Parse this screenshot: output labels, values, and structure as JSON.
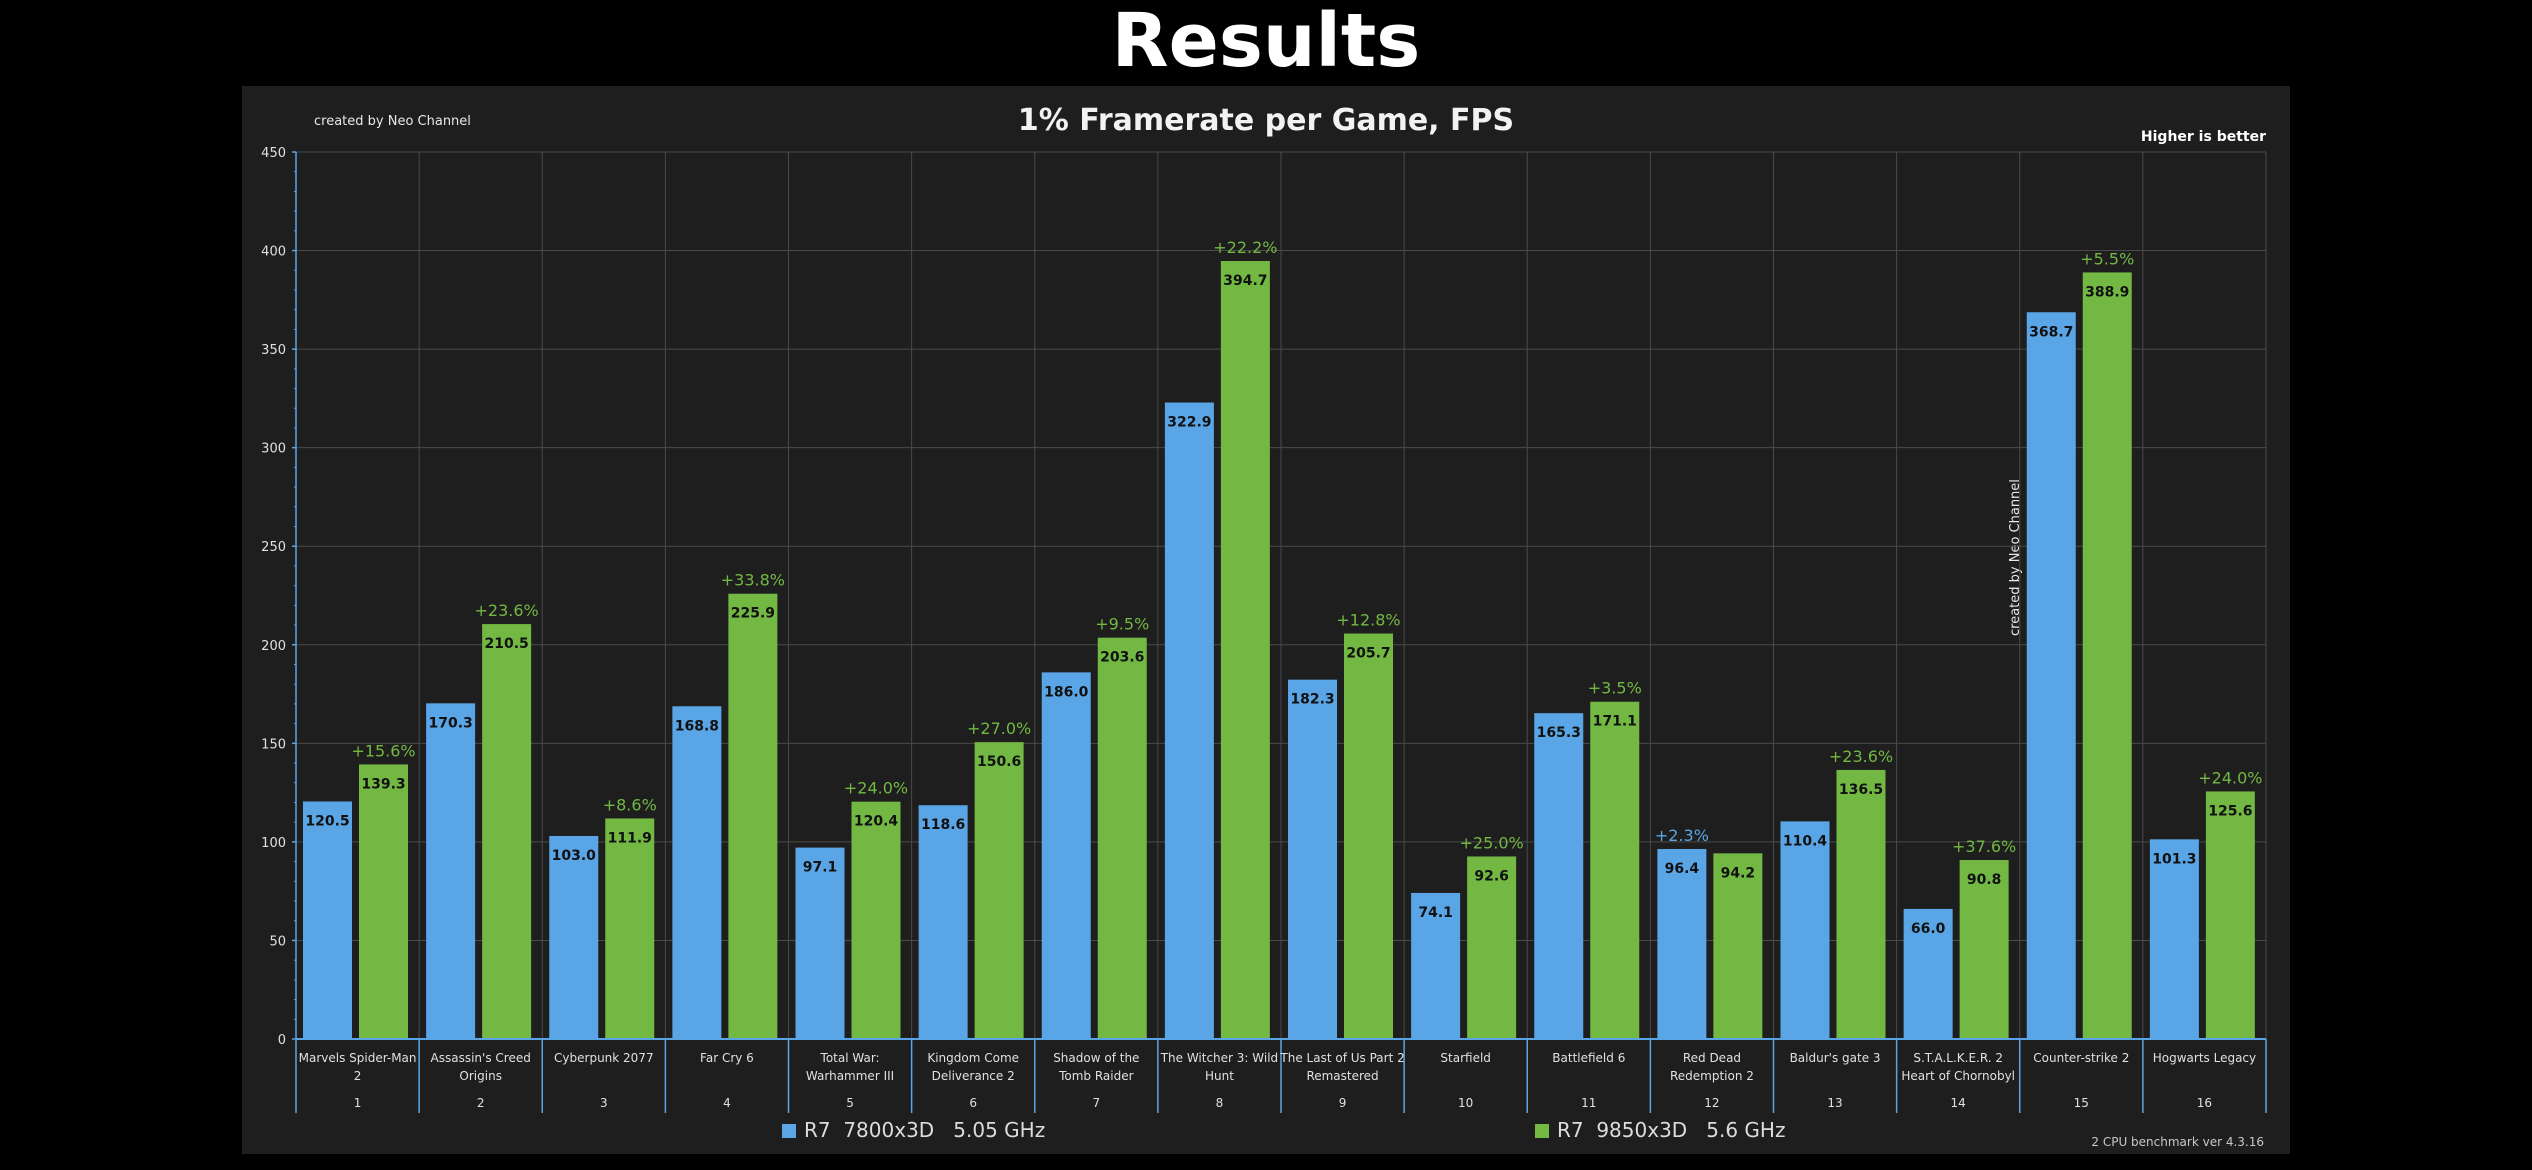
{
  "page": {
    "title": "Results"
  },
  "chart_data": {
    "type": "bar",
    "title": "1% Framerate per Game, FPS",
    "credit": "created by Neo Channel",
    "credit_vertical": "created by Neo Channel",
    "note": "Higher is better",
    "footer": "2 CPU benchmark    ver 4.3.16",
    "ylim": [
      0,
      450
    ],
    "yticks": [
      0,
      50,
      100,
      150,
      200,
      250,
      300,
      350,
      400,
      450
    ],
    "grid": true,
    "legend_position": "bottom",
    "categories": [
      {
        "label": [
          "Marvels Spider-Man",
          "2"
        ],
        "index": "1"
      },
      {
        "label": [
          "Assassin's Creed",
          "Origins"
        ],
        "index": "2"
      },
      {
        "label": [
          "Cyberpunk 2077"
        ],
        "index": "3"
      },
      {
        "label": [
          "Far Cry 6"
        ],
        "index": "4"
      },
      {
        "label": [
          "Total War:",
          "Warhammer III"
        ],
        "index": "5"
      },
      {
        "label": [
          "Kingdom Come",
          "Deliverance 2"
        ],
        "index": "6"
      },
      {
        "label": [
          "Shadow of the",
          "Tomb Raider"
        ],
        "index": "7"
      },
      {
        "label": [
          "The Witcher 3: Wild",
          "Hunt"
        ],
        "index": "8"
      },
      {
        "label": [
          "The Last of Us Part 2",
          "Remastered"
        ],
        "index": "9"
      },
      {
        "label": [
          "Starfield"
        ],
        "index": "10"
      },
      {
        "label": [
          "Battlefield 6"
        ],
        "index": "11"
      },
      {
        "label": [
          "Red Dead",
          "Redemption 2"
        ],
        "index": "12"
      },
      {
        "label": [
          "Baldur's gate 3"
        ],
        "index": "13"
      },
      {
        "label": [
          "S.T.A.L.K.E.R. 2",
          "Heart of Chornobyl"
        ],
        "index": "14"
      },
      {
        "label": [
          "Counter-strike 2"
        ],
        "index": "15"
      },
      {
        "label": [
          "Hogwarts Legacy"
        ],
        "index": "16"
      }
    ],
    "series": [
      {
        "name": "R7  7800x3D   5.05 GHz",
        "color": "#5aa5e6",
        "values": [
          120.5,
          170.3,
          103.0,
          168.8,
          97.1,
          118.6,
          186.0,
          322.9,
          182.3,
          74.1,
          165.3,
          96.4,
          110.4,
          66.0,
          368.7,
          101.3
        ],
        "labels": [
          "120.5",
          "170.3",
          "103.0",
          "168.8",
          "97.1",
          "118.6",
          "186.0",
          "322.9",
          "182.3",
          "74.1",
          "165.3",
          "96.4",
          "110.4",
          "66.0",
          "368.7",
          "101.3"
        ]
      },
      {
        "name": "R7  9850x3D   5.6 GHz",
        "color": "#72b843",
        "values": [
          139.3,
          210.5,
          111.9,
          225.9,
          120.4,
          150.6,
          203.6,
          394.7,
          205.7,
          92.6,
          171.1,
          94.2,
          136.5,
          90.8,
          388.9,
          125.6
        ],
        "labels": [
          "139.3",
          "210.5",
          "111.9",
          "225.9",
          "120.4",
          "150.6",
          "203.6",
          "394.7",
          "205.7",
          "92.6",
          "171.1",
          "94.2",
          "136.5",
          "90.8",
          "388.9",
          "125.6"
        ]
      }
    ],
    "deltas": [
      {
        "text": "+15.6%",
        "series": 1
      },
      {
        "text": "+23.6%",
        "series": 1
      },
      {
        "text": "+8.6%",
        "series": 1
      },
      {
        "text": "+33.8%",
        "series": 1
      },
      {
        "text": "+24.0%",
        "series": 1
      },
      {
        "text": "+27.0%",
        "series": 1
      },
      {
        "text": "+9.5%",
        "series": 1
      },
      {
        "text": "+22.2%",
        "series": 1
      },
      {
        "text": "+12.8%",
        "series": 1
      },
      {
        "text": "+25.0%",
        "series": 1
      },
      {
        "text": "+3.5%",
        "series": 1
      },
      {
        "text": "+2.3%",
        "series": 0
      },
      {
        "text": "+23.6%",
        "series": 1
      },
      {
        "text": "+37.6%",
        "series": 1
      },
      {
        "text": "+5.5%",
        "series": 1
      },
      {
        "text": "+24.0%",
        "series": 1
      }
    ]
  }
}
